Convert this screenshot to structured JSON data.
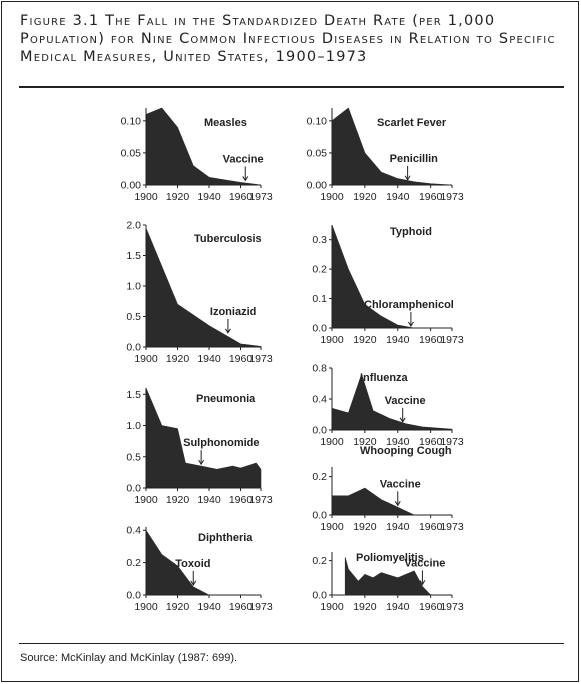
{
  "figure": {
    "title": "Figure 3.1 The Fall in the Standardized Death Rate (per 1,000 Population) for Nine Common Infectious Diseases in Relation to Specific Medical Measures, United States, 1900–1973",
    "source": "Source: McKinlay and McKinlay (1987: 699)."
  },
  "colors": {
    "fill": "#2b2b2b",
    "axis": "#222222"
  },
  "chart_data": [
    {
      "type": "area",
      "title": "Measles",
      "x": [
        1900,
        1910,
        1920,
        1930,
        1940,
        1950,
        1960,
        1973
      ],
      "values": [
        0.11,
        0.12,
        0.09,
        0.03,
        0.012,
        0.008,
        0.004,
        0.0
      ],
      "ylim": [
        0,
        0.12
      ],
      "yticks": [
        "0.10",
        "0.05",
        "0.00"
      ],
      "ytick_values": [
        0.1,
        0.05,
        0.0
      ],
      "xticks": [
        "1900",
        "1920",
        "1940",
        "1960",
        "1973"
      ],
      "annotation": {
        "label": "Vaccine",
        "year": 1963
      }
    },
    {
      "type": "area",
      "title": "Scarlet Fever",
      "x": [
        1900,
        1910,
        1920,
        1930,
        1940,
        1950,
        1960,
        1973
      ],
      "values": [
        0.1,
        0.12,
        0.05,
        0.02,
        0.01,
        0.005,
        0.002,
        0.0
      ],
      "ylim": [
        0,
        0.12
      ],
      "yticks": [
        "0.10",
        "0.05",
        "0.00"
      ],
      "ytick_values": [
        0.1,
        0.05,
        0.0
      ],
      "xticks": [
        "1900",
        "1920",
        "1940",
        "1960",
        "1973"
      ],
      "annotation": {
        "label": "Penicillin",
        "year": 1946
      }
    },
    {
      "type": "area",
      "title": "Tuberculosis",
      "x": [
        1900,
        1920,
        1940,
        1950,
        1960,
        1973
      ],
      "values": [
        1.95,
        0.7,
        0.35,
        0.2,
        0.05,
        0.01
      ],
      "ylim": [
        0,
        2.0
      ],
      "yticks": [
        "2.0",
        "1.5",
        "1.0",
        "0.5",
        "0.0"
      ],
      "ytick_values": [
        2.0,
        1.5,
        1.0,
        0.5,
        0.0
      ],
      "xticks": [
        "1900",
        "1920",
        "1940",
        "1960",
        "1973"
      ],
      "annotation": {
        "label": "Izoniazid",
        "year": 1952
      }
    },
    {
      "type": "area",
      "title": "Typhoid",
      "x": [
        1900,
        1910,
        1920,
        1930,
        1940,
        1950
      ],
      "values": [
        0.35,
        0.2,
        0.08,
        0.04,
        0.01,
        0.0
      ],
      "ylim": [
        0,
        0.35
      ],
      "yticks": [
        "0.3",
        "0.2",
        "0.1",
        "0.0"
      ],
      "ytick_values": [
        0.3,
        0.2,
        0.1,
        0.0
      ],
      "xticks": [
        "1900",
        "1920",
        "1940",
        "1960",
        "1973"
      ],
      "annotation": {
        "label": "Chloramphenicol",
        "year": 1948
      }
    },
    {
      "type": "area",
      "title": "Influenza",
      "x": [
        1900,
        1910,
        1918,
        1925,
        1935,
        1945,
        1955,
        1973
      ],
      "values": [
        0.28,
        0.22,
        0.72,
        0.25,
        0.15,
        0.08,
        0.04,
        0.01
      ],
      "ylim": [
        0,
        0.8
      ],
      "yticks": [
        "0.8",
        "0.4",
        "0.0"
      ],
      "ytick_values": [
        0.8,
        0.4,
        0.0
      ],
      "xticks": [
        "1900",
        "1920",
        "1940",
        "1960",
        "1973"
      ],
      "annotation": {
        "label": "Vaccine",
        "year": 1943
      }
    },
    {
      "type": "area",
      "title": "Pneumonia",
      "x": [
        1900,
        1910,
        1920,
        1925,
        1935,
        1945,
        1955,
        1960,
        1970,
        1973
      ],
      "values": [
        1.6,
        1.0,
        0.95,
        0.4,
        0.35,
        0.3,
        0.35,
        0.32,
        0.4,
        0.3
      ],
      "ylim": [
        0,
        1.6
      ],
      "yticks": [
        "1.5",
        "1.0",
        "0.5",
        "0.0"
      ],
      "ytick_values": [
        1.5,
        1.0,
        0.5,
        0.0
      ],
      "xticks": [
        "1900",
        "1920",
        "1940",
        "1960",
        "1973"
      ],
      "annotation": {
        "label": "Sulphonomide",
        "year": 1935
      }
    },
    {
      "type": "area",
      "title": "Whooping Cough",
      "x": [
        1900,
        1910,
        1920,
        1930,
        1940,
        1950
      ],
      "values": [
        0.1,
        0.1,
        0.14,
        0.08,
        0.04,
        0.0
      ],
      "ylim": [
        0,
        0.25
      ],
      "yticks": [
        "0.2",
        "0.0"
      ],
      "ytick_values": [
        0.2,
        0.0
      ],
      "xticks": [
        "1900",
        "1920",
        "1940",
        "1960",
        "1973"
      ],
      "annotation": {
        "label": "Vaccine",
        "year": 1940
      }
    },
    {
      "type": "area",
      "title": "Diphtheria",
      "x": [
        1900,
        1910,
        1920,
        1930,
        1940
      ],
      "values": [
        0.4,
        0.25,
        0.18,
        0.05,
        0.0
      ],
      "ylim": [
        0,
        0.42
      ],
      "yticks": [
        "0.4",
        "0.2",
        "0.0"
      ],
      "ytick_values": [
        0.4,
        0.2,
        0.0
      ],
      "xticks": [
        "1900",
        "1920",
        "1940",
        "1960",
        "1973"
      ],
      "annotation": {
        "label": "Toxoid",
        "year": 1930
      }
    },
    {
      "type": "area",
      "title": "Poliomyelitis",
      "x": [
        1908,
        1910,
        1916,
        1920,
        1925,
        1930,
        1940,
        1950,
        1955,
        1960
      ],
      "values": [
        0.22,
        0.15,
        0.08,
        0.12,
        0.1,
        0.13,
        0.1,
        0.14,
        0.05,
        0.0
      ],
      "ylim": [
        0,
        0.25
      ],
      "yticks": [
        "0.2",
        "0.0"
      ],
      "ytick_values": [
        0.2,
        0.0
      ],
      "xticks": [
        "1900",
        "1920",
        "1940",
        "1960",
        "1973"
      ],
      "annotation": {
        "label": "Vaccine",
        "year": 1955
      }
    }
  ]
}
